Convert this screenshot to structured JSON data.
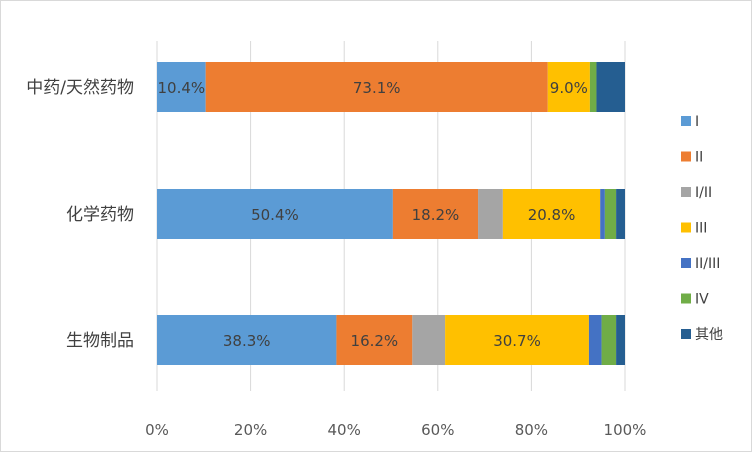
{
  "chart_data": {
    "type": "bar",
    "orientation": "horizontal",
    "stacked": "percent",
    "categories": [
      "中药/天然药物",
      "化学药物",
      "生物制品"
    ],
    "series": [
      {
        "name": "I",
        "color": "#5b9bd5",
        "values": [
          10.4,
          50.4,
          38.3
        ]
      },
      {
        "name": "II",
        "color": "#ed7d31",
        "values": [
          73.1,
          18.2,
          16.2
        ]
      },
      {
        "name": "I/II",
        "color": "#a5a5a5",
        "values": [
          0.0,
          5.3,
          7.0
        ]
      },
      {
        "name": "III",
        "color": "#ffc000",
        "values": [
          9.0,
          20.8,
          30.7
        ]
      },
      {
        "name": "II/III",
        "color": "#4472c4",
        "values": [
          0.0,
          1.0,
          2.7
        ]
      },
      {
        "name": "IV",
        "color": "#70ad47",
        "values": [
          1.4,
          2.4,
          3.1
        ]
      },
      {
        "name": "其他",
        "color": "#255e91",
        "values": [
          6.1,
          1.9,
          1.9
        ]
      }
    ],
    "data_labels": [
      {
        "series": 0,
        "category": 0,
        "text": "10.4%"
      },
      {
        "series": 1,
        "category": 0,
        "text": "73.1%"
      },
      {
        "series": 3,
        "category": 0,
        "text": "9.0%"
      },
      {
        "series": 0,
        "category": 1,
        "text": "50.4%"
      },
      {
        "series": 1,
        "category": 1,
        "text": "18.2%"
      },
      {
        "series": 3,
        "category": 1,
        "text": "20.8%"
      },
      {
        "series": 0,
        "category": 2,
        "text": "38.3%"
      },
      {
        "series": 1,
        "category": 2,
        "text": "16.2%"
      },
      {
        "series": 3,
        "category": 2,
        "text": "30.7%"
      }
    ],
    "xticks": [
      "0%",
      "20%",
      "40%",
      "60%",
      "80%",
      "100%"
    ],
    "xlim": [
      0,
      100
    ],
    "title": "",
    "xlabel": "",
    "ylabel": "",
    "legend": "right",
    "grid": "vertical"
  }
}
